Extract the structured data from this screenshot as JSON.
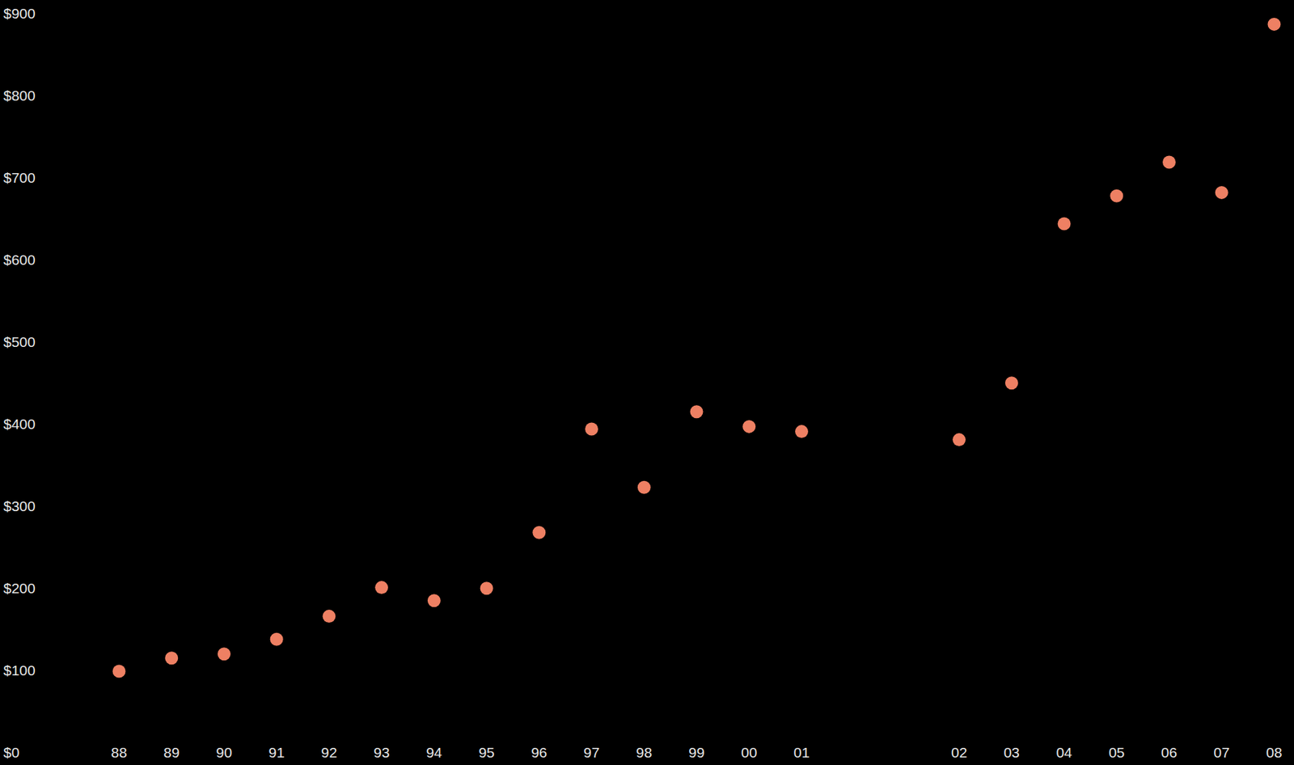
{
  "chart_data": {
    "type": "scatter",
    "categories": [
      "88",
      "89",
      "90",
      "91",
      "92",
      "93",
      "94",
      "95",
      "96",
      "97",
      "98",
      "99",
      "00",
      "01",
      null,
      null,
      "02",
      "03",
      "04",
      "05",
      "06",
      "07",
      "08"
    ],
    "values": [
      100,
      116,
      121,
      139,
      167,
      202,
      186,
      201,
      269,
      395,
      324,
      416,
      398,
      392,
      null,
      null,
      382,
      451,
      645,
      679,
      720,
      683,
      888
    ],
    "color": "#ee8063",
    "marker": "circle",
    "ylim": [
      0,
      900
    ],
    "yticks": [
      {
        "value": 0,
        "label": "$0"
      },
      {
        "value": 100,
        "label": "$100"
      },
      {
        "value": 200,
        "label": "$200"
      },
      {
        "value": 300,
        "label": "$300"
      },
      {
        "value": 400,
        "label": "$400"
      },
      {
        "value": 500,
        "label": "$500"
      },
      {
        "value": 600,
        "label": "$600"
      },
      {
        "value": 700,
        "label": "$700"
      },
      {
        "value": 800,
        "label": "$800"
      },
      {
        "value": 900,
        "label": "$900"
      }
    ],
    "grid": false
  }
}
